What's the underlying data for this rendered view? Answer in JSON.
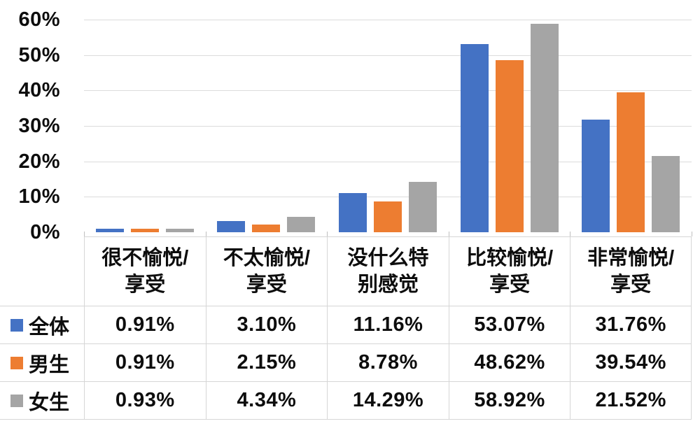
{
  "chart_data": {
    "type": "bar",
    "title": "",
    "xlabel": "",
    "ylabel": "",
    "ylim": [
      0,
      60
    ],
    "grid": true,
    "y_ticks": [
      "0%",
      "10%",
      "20%",
      "30%",
      "40%",
      "50%",
      "60%"
    ],
    "y_tick_values": [
      0,
      10,
      20,
      30,
      40,
      50,
      60
    ],
    "categories": [
      [
        "很不愉悦/",
        "享受"
      ],
      [
        "不太愉悦/",
        "享受"
      ],
      [
        "没什么特",
        "别感觉"
      ],
      [
        "比较愉悦/",
        "享受"
      ],
      [
        "非常愉悦/",
        "享受"
      ]
    ],
    "legend_position": "table-left",
    "series": [
      {
        "name": "全体",
        "color": "#4472C4",
        "values": [
          0.91,
          3.1,
          11.16,
          53.07,
          31.76
        ],
        "labels": [
          "0.91%",
          "3.10%",
          "11.16%",
          "53.07%",
          "31.76%"
        ]
      },
      {
        "name": "男生",
        "color": "#ED7D31",
        "values": [
          0.91,
          2.15,
          8.78,
          48.62,
          39.54
        ],
        "labels": [
          "0.91%",
          "2.15%",
          "8.78%",
          "48.62%",
          "39.54%"
        ]
      },
      {
        "name": "女生",
        "color": "#A5A5A5",
        "values": [
          0.93,
          4.34,
          14.29,
          58.92,
          21.52
        ],
        "labels": [
          "0.93%",
          "4.34%",
          "14.29%",
          "58.92%",
          "21.52%"
        ]
      }
    ],
    "colors": {
      "gridline": "#dcdcdc",
      "table_border": "#d6d6d6",
      "text": "#0d0d0d"
    }
  }
}
